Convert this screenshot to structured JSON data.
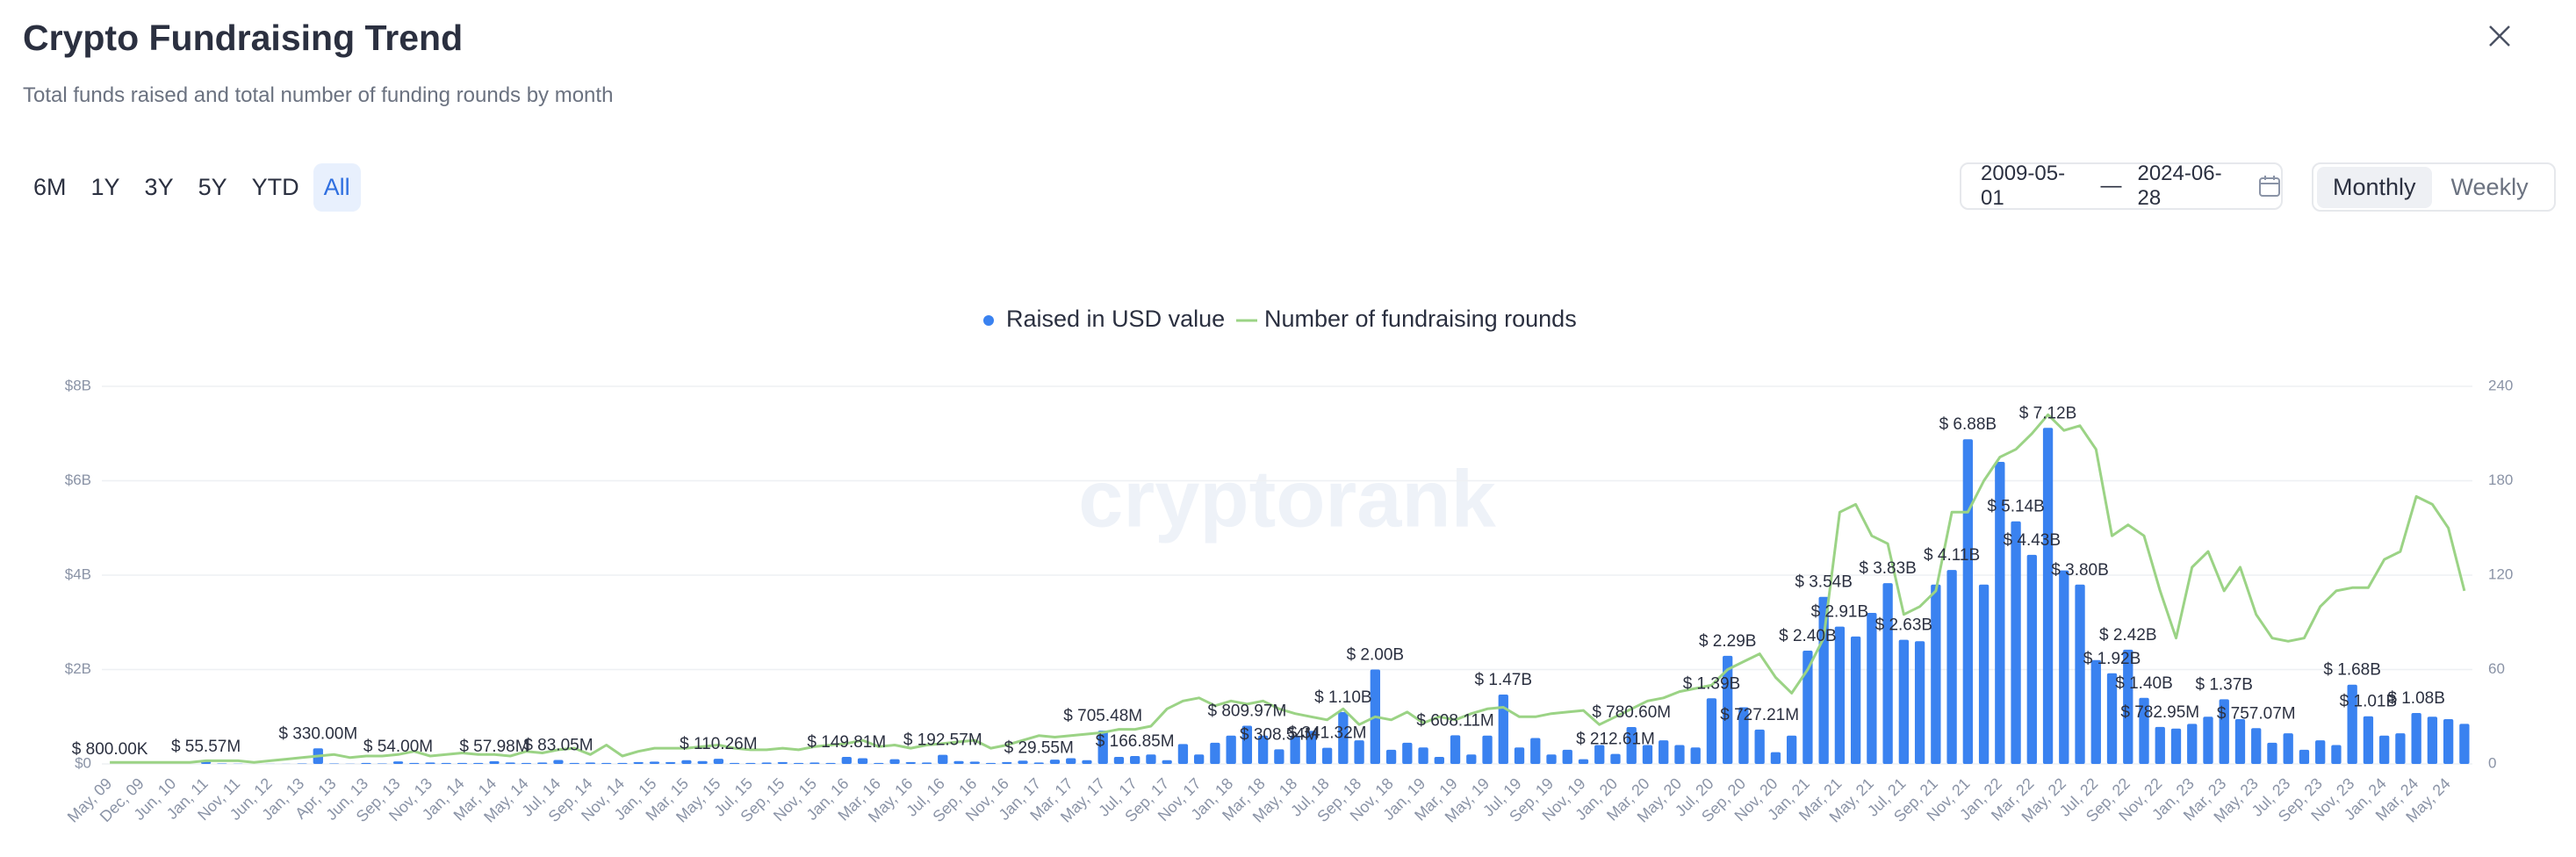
{
  "chart_data": {
    "type": "bar",
    "title": "Crypto Fundraising Trend",
    "subtitle": "Total funds raised and total number of funding rounds by month",
    "watermark": "cryptorank",
    "categories": [
      "May, 09",
      null,
      "Dec, 09",
      null,
      "Jun, 10",
      null,
      "Jan, 11",
      null,
      "Nov, 11",
      null,
      "Jun, 12",
      null,
      "Jan, 13",
      null,
      "Apr, 13",
      null,
      "Jun, 13",
      null,
      "Sep, 13",
      null,
      "Nov, 13",
      null,
      "Jan, 14",
      null,
      "Mar, 14",
      null,
      "May, 14",
      null,
      "Jul, 14",
      null,
      "Sep, 14",
      null,
      "Nov, 14",
      null,
      "Jan, 15",
      null,
      "Mar, 15",
      null,
      "May, 15",
      null,
      "Jul, 15",
      null,
      "Sep, 15",
      null,
      "Nov, 15",
      null,
      "Jan, 16",
      null,
      "Mar, 16",
      null,
      "May, 16",
      null,
      "Jul, 16",
      null,
      "Sep, 16",
      null,
      "Nov, 16",
      null,
      "Jan, 17",
      null,
      "Mar, 17",
      null,
      "May, 17",
      null,
      "Jul, 17",
      null,
      "Sep, 17",
      null,
      "Nov, 17",
      null,
      "Jan, 18",
      null,
      "Mar, 18",
      null,
      "May, 18",
      null,
      "Jul, 18",
      null,
      "Sep, 18",
      null,
      "Nov, 18",
      null,
      "Jan, 19",
      null,
      "Mar, 19",
      null,
      "May, 19",
      null,
      "Jul, 19",
      null,
      "Sep, 19",
      null,
      "Nov, 19",
      null,
      "Jan, 20",
      null,
      "Mar, 20",
      null,
      "May, 20",
      null,
      "Jul, 20",
      null,
      "Sep, 20",
      null,
      "Nov, 20",
      null,
      "Jan, 21",
      null,
      "Mar, 21",
      null,
      "May, 21",
      null,
      "Jul, 21",
      null,
      "Sep, 21",
      null,
      "Nov, 21",
      null,
      "Jan, 22",
      null,
      "Mar, 22",
      null,
      "May, 22",
      null,
      "Jul, 22",
      null,
      "Sep, 22",
      null,
      "Nov, 22",
      null,
      "Jan, 23",
      null,
      "Mar, 23",
      null,
      "May, 23",
      null,
      "Jul, 23",
      null,
      "Sep, 23",
      null,
      "Nov, 23",
      null,
      "Jan, 24",
      null,
      "Mar, 24",
      null,
      "May, 24",
      null
    ],
    "series": [
      {
        "name": "Raised in USD value",
        "type": "bar",
        "color": "#3a82f0",
        "values": [
          0.0008,
          0,
          0.001,
          0,
          0.001,
          0,
          0.05557,
          0.01,
          0.005,
          0,
          0.003,
          0.002,
          0.01,
          0.33,
          0.01,
          0.005,
          0.02,
          0.01,
          0.054,
          0.02,
          0.03,
          0.02,
          0.02,
          0.02,
          0.05798,
          0.03,
          0.02,
          0.03,
          0.08305,
          0.02,
          0.03,
          0.02,
          0.02,
          0.04,
          0.05,
          0.04,
          0.08,
          0.06,
          0.11026,
          0.02,
          0.02,
          0.03,
          0.04,
          0.02,
          0.03,
          0.02,
          0.14981,
          0.12,
          0.02,
          0.1,
          0.04,
          0.03,
          0.19257,
          0.06,
          0.05,
          0.02,
          0.04,
          0.07,
          0.02955,
          0.09,
          0.12,
          0.08,
          0.70548,
          0.15,
          0.16685,
          0.2,
          0.08,
          0.42,
          0.2,
          0.45,
          0.6,
          0.80997,
          0.6,
          0.30854,
          0.6,
          0.7,
          0.34132,
          1.1,
          0.5,
          2.0,
          0.3,
          0.45,
          0.35,
          0.15,
          0.60811,
          0.2,
          0.6,
          1.47,
          0.35,
          0.55,
          0.2,
          0.3,
          0.1,
          0.4,
          0.21261,
          0.7806,
          0.4,
          0.5,
          0.4,
          0.35,
          1.39,
          2.29,
          1.2,
          0.72721,
          0.25,
          0.6,
          2.4,
          3.54,
          2.91,
          2.7,
          3.2,
          3.83,
          2.63,
          2.6,
          3.8,
          4.11,
          6.88,
          3.8,
          6.4,
          5.14,
          4.43,
          7.12,
          4.1,
          3.8,
          2.2,
          1.92,
          2.42,
          1.4,
          0.78295,
          0.75,
          0.85,
          1.0,
          1.37,
          0.95,
          0.75707,
          0.45,
          0.65,
          0.3,
          0.5,
          0.4,
          1.68,
          1.01,
          0.6,
          0.65,
          1.08,
          1.0,
          0.95,
          0.85
        ],
        "value_labels": [
          "$ 800.00K",
          null,
          null,
          null,
          null,
          null,
          "$ 55.57M",
          null,
          null,
          null,
          null,
          null,
          null,
          "$ 330.00M",
          null,
          null,
          null,
          null,
          "$ 54.00M",
          null,
          null,
          null,
          null,
          null,
          "$ 57.98M",
          null,
          null,
          null,
          "$ 83.05M",
          null,
          null,
          null,
          null,
          null,
          null,
          null,
          null,
          null,
          "$ 110.26M",
          null,
          null,
          null,
          null,
          null,
          null,
          null,
          "$ 149.81M",
          null,
          null,
          null,
          null,
          null,
          "$ 192.57M",
          null,
          null,
          null,
          null,
          null,
          "$ 29.55M",
          null,
          null,
          null,
          "$ 705.48M",
          null,
          "$ 166.85M",
          null,
          null,
          null,
          null,
          null,
          null,
          "$ 809.97M",
          null,
          "$ 308.54M",
          null,
          null,
          "$ 341.32M",
          "$ 1.10B",
          null,
          "$ 2.00B",
          null,
          null,
          null,
          null,
          "$ 608.11M",
          null,
          null,
          "$ 1.47B",
          null,
          null,
          null,
          null,
          null,
          null,
          "$ 212.61M",
          "$ 780.60M",
          null,
          null,
          null,
          null,
          "$ 1.39B",
          "$ 2.29B",
          null,
          "$ 727.21M",
          null,
          null,
          "$ 2.40B",
          "$ 3.54B",
          "$ 2.91B",
          null,
          null,
          "$ 3.83B",
          "$ 2.63B",
          null,
          null,
          "$ 4.11B",
          "$ 6.88B",
          null,
          null,
          "$ 5.14B",
          "$ 4.43B",
          "$ 7.12B",
          null,
          "$ 3.80B",
          null,
          "$ 1.92B",
          "$ 2.42B",
          "$ 1.40B",
          "$ 782.95M",
          null,
          null,
          null,
          "$ 1.37B",
          null,
          "$ 757.07M",
          null,
          null,
          null,
          null,
          null,
          "$ 1.68B",
          "$ 1.01B",
          null,
          null,
          "$ 1.08B",
          null,
          null,
          null
        ]
      },
      {
        "name": "Number of fundraising rounds",
        "type": "line",
        "axis": "y2",
        "color": "#9bd385",
        "values": [
          1,
          1,
          1,
          1,
          1,
          1,
          2,
          2,
          2,
          1,
          2,
          3,
          4,
          5,
          6,
          4,
          5,
          5,
          6,
          8,
          5,
          6,
          7,
          6,
          6,
          5,
          8,
          7,
          9,
          10,
          6,
          12,
          5,
          8,
          10,
          10,
          10,
          11,
          12,
          10,
          9,
          9,
          10,
          9,
          11,
          12,
          13,
          15,
          11,
          12,
          10,
          12,
          13,
          14,
          15,
          10,
          12,
          15,
          18,
          17,
          18,
          19,
          20,
          22,
          22,
          24,
          35,
          40,
          42,
          37,
          40,
          38,
          40,
          35,
          32,
          30,
          28,
          35,
          25,
          30,
          28,
          33,
          26,
          30,
          28,
          32,
          35,
          36,
          30,
          30,
          32,
          33,
          34,
          25,
          30,
          35,
          40,
          42,
          46,
          48,
          50,
          60,
          65,
          70,
          55,
          45,
          60,
          80,
          160,
          165,
          145,
          140,
          95,
          100,
          110,
          160,
          160,
          180,
          195,
          200,
          210,
          222,
          212,
          215,
          200,
          145,
          152,
          145,
          110,
          80,
          125,
          135,
          110,
          125,
          95,
          80,
          78,
          80,
          100,
          110,
          112,
          112,
          130,
          135,
          170,
          165,
          150,
          110
        ]
      }
    ],
    "ylim": [
      0,
      8
    ],
    "yticks": [
      {
        "value": 0,
        "label": "$0"
      },
      {
        "value": 2,
        "label": "$2B"
      },
      {
        "value": 4,
        "label": "$4B"
      },
      {
        "value": 6,
        "label": "$6B"
      },
      {
        "value": 8,
        "label": "$8B"
      }
    ],
    "y2lim": [
      0,
      240
    ],
    "y2ticks": [
      0,
      60,
      120,
      180,
      240
    ],
    "grid": true,
    "legend": "top"
  },
  "controls": {
    "ranges": [
      "6M",
      "1Y",
      "3Y",
      "5Y",
      "YTD",
      "All"
    ],
    "active_range": "All",
    "date_from": "2009-05-01",
    "date_separator": "—",
    "date_to": "2024-06-28",
    "intervals": [
      "Monthly",
      "Weekly"
    ],
    "active_interval": "Monthly"
  }
}
